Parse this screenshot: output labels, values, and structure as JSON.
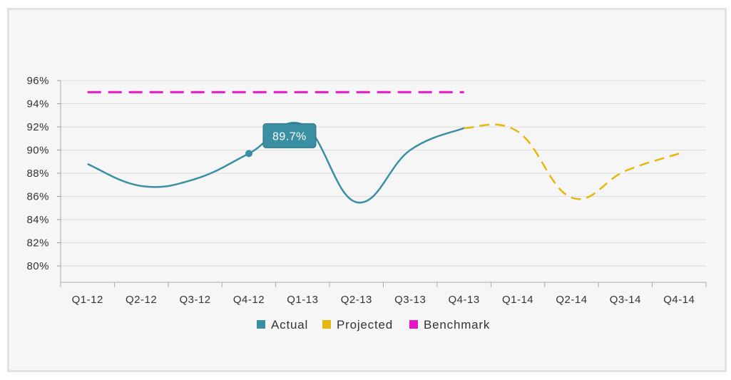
{
  "chart_data": {
    "type": "line",
    "categories": [
      "Q1-12",
      "Q2-12",
      "Q3-12",
      "Q4-12",
      "Q1-13",
      "Q2-13",
      "Q3-13",
      "Q4-13",
      "Q1-14",
      "Q2-14",
      "Q3-14",
      "Q4-14"
    ],
    "ylim": [
      80,
      96
    ],
    "ytick_values": [
      80,
      82,
      84,
      86,
      88,
      90,
      92,
      94,
      96
    ],
    "ytick_labels": [
      "80%",
      "82%",
      "84%",
      "86%",
      "88%",
      "90%",
      "92%",
      "94%",
      "96%"
    ],
    "grid": true,
    "legend_position": "bottom",
    "series": [
      {
        "name": "Actual",
        "color": "#3a8fa3",
        "style": "solid",
        "values": [
          88.8,
          86.9,
          87.5,
          89.7,
          92.2,
          85.5,
          90.0,
          91.9,
          null,
          null,
          null,
          null
        ]
      },
      {
        "name": "Projected",
        "color": "#e5b80b",
        "style": "dashed",
        "values": [
          null,
          null,
          null,
          null,
          null,
          null,
          null,
          91.9,
          91.6,
          85.9,
          88.2,
          89.7
        ]
      },
      {
        "name": "Benchmark",
        "color": "#e614c8",
        "style": "dashed",
        "values": [
          95,
          95,
          95,
          95,
          95,
          95,
          95,
          95,
          null,
          null,
          null,
          null
        ]
      }
    ],
    "highlight": {
      "series": "Actual",
      "category": "Q4-12",
      "value": 89.7,
      "label": "89.7%"
    }
  }
}
